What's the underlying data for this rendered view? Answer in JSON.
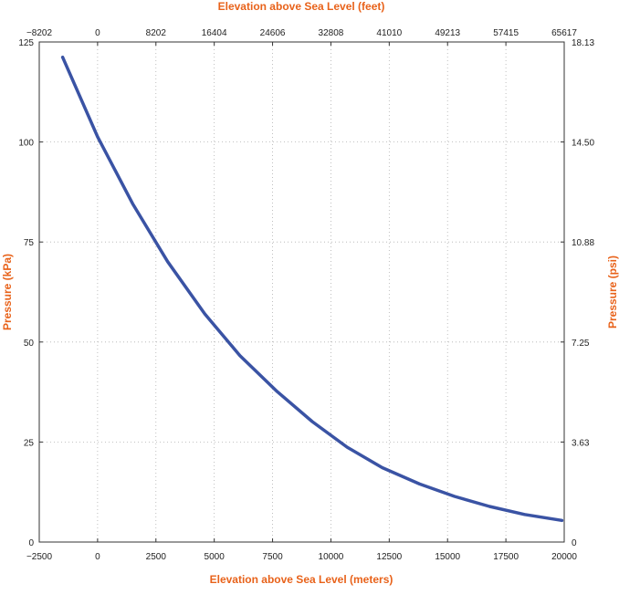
{
  "chart_data": {
    "type": "line",
    "title": "",
    "xlabel": "Elevation above Sea Level (meters)",
    "ylabel": "Pressure (kPa)",
    "x2label": "Elevation above Sea Level (feet)",
    "y2label": "Pressure (psi)",
    "xlim": [
      -2500,
      20000
    ],
    "ylim": [
      0,
      125
    ],
    "x_ticks": [
      "−2500",
      "0",
      "2500",
      "5000",
      "7500",
      "10000",
      "12500",
      "15000",
      "17500",
      "20000"
    ],
    "y_ticks": [
      "0",
      "25",
      "50",
      "75",
      "100",
      "125"
    ],
    "x2_ticks": [
      "−8202",
      "0",
      "8202",
      "16404",
      "24606",
      "32808",
      "41010",
      "49213",
      "57415",
      "65617"
    ],
    "y2_ticks": [
      "0",
      "3.63",
      "7.25",
      "10.88",
      "14.50",
      "18.13"
    ],
    "grid": true,
    "colors": {
      "series": "#3a53a4",
      "label": "#e8621a"
    },
    "series": [
      {
        "x": [
          -1500,
          0,
          1500,
          3000,
          4600,
          6100,
          7700,
          9200,
          10700,
          12200,
          13800,
          15300,
          16800,
          18300,
          19900
        ],
        "y": [
          121.2,
          101.3,
          84.6,
          70.1,
          57.0,
          46.6,
          37.6,
          30.1,
          23.7,
          18.6,
          14.5,
          11.4,
          8.9,
          6.9,
          5.4
        ]
      }
    ]
  }
}
